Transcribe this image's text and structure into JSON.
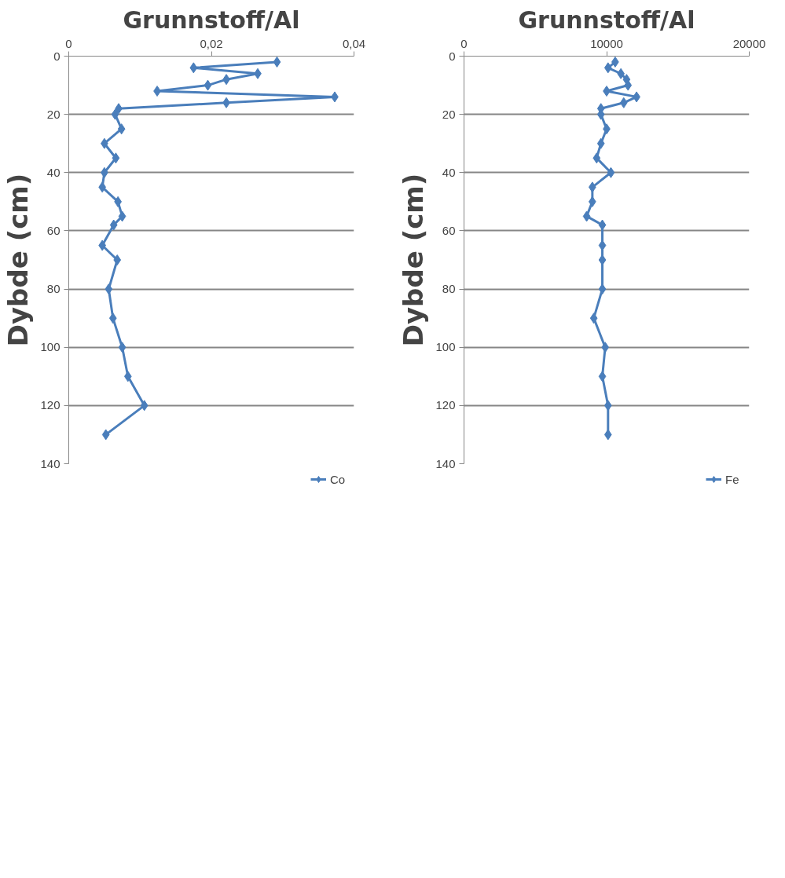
{
  "chart_data": [
    {
      "type": "line",
      "title": "Grunnstoff/Al",
      "ylabel": "Dybde (cm)",
      "xlim": [
        0,
        0.04
      ],
      "xticks": [
        0,
        {
          "value": 0.02,
          "label": "0,02"
        },
        {
          "value": 0.04,
          "label": "0,04"
        }
      ],
      "ylim": [
        140,
        0
      ],
      "yticks": [
        0,
        20,
        40,
        60,
        80,
        100,
        120,
        140
      ],
      "grid": "y",
      "legend": "bottom",
      "marker": "diamond",
      "line_style": "solid",
      "series": [
        {
          "name": "Co",
          "color": "#4a7ebb",
          "x": [
            0.0292,
            0.0175,
            0.0265,
            0.0221,
            0.0195,
            0.0124,
            0.0373,
            0.0221,
            0.007,
            0.0065,
            0.0074,
            0.005,
            0.0066,
            0.005,
            0.0047,
            0.0069,
            0.0075,
            0.0063,
            0.0047,
            0.0068,
            0.0056,
            0.0062,
            0.0075,
            0.0083,
            0.0106,
            0.0052
          ],
          "values": [
            2,
            4,
            6,
            8,
            10,
            12,
            14,
            16,
            18,
            20,
            25,
            30,
            35,
            40,
            45,
            50,
            55,
            58,
            65,
            70,
            80,
            90,
            100,
            110,
            120,
            130
          ]
        }
      ]
    },
    {
      "type": "line",
      "title": "Grunnstoff/Al",
      "ylabel": "Dybde (cm)",
      "xlim": [
        0,
        20000
      ],
      "xticks": [
        0,
        10000,
        20000
      ],
      "ylim": [
        140,
        0
      ],
      "yticks": [
        0,
        20,
        40,
        60,
        80,
        100,
        120,
        140
      ],
      "grid": "y",
      "legend": "bottom",
      "marker": "diamond",
      "line_style": "solid",
      "series": [
        {
          "name": "Fe",
          "color": "#4a7ebb",
          "x": [
            10600,
            10100,
            11000,
            11400,
            11500,
            10000,
            12100,
            11200,
            9600,
            9600,
            10000,
            9600,
            9300,
            10300,
            9000,
            9000,
            8600,
            9700,
            9700,
            9700,
            9700,
            9100,
            9900,
            9700,
            10100,
            10100
          ],
          "values": [
            2,
            4,
            6,
            8,
            10,
            12,
            14,
            16,
            18,
            20,
            25,
            30,
            35,
            40,
            45,
            50,
            55,
            58,
            65,
            70,
            80,
            90,
            100,
            110,
            120,
            130
          ]
        }
      ]
    }
  ]
}
